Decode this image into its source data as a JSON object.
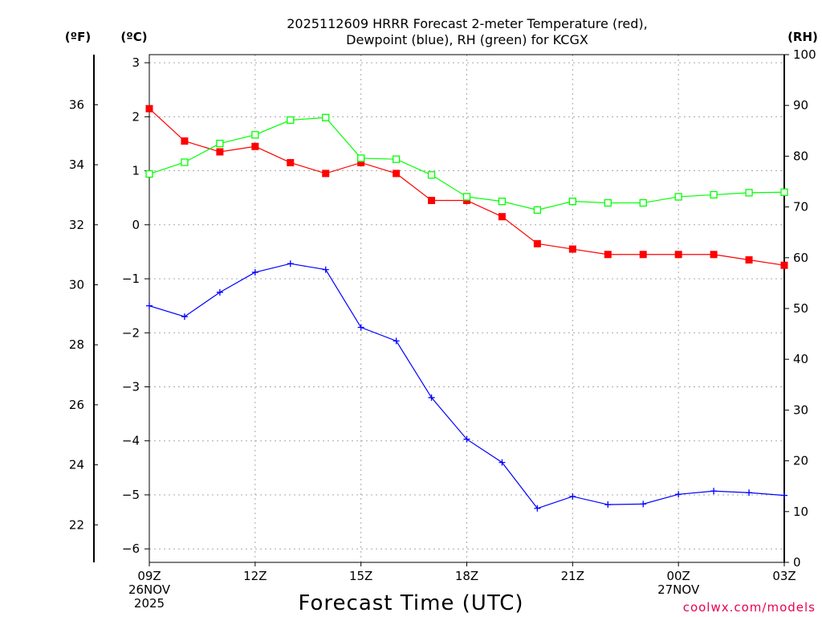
{
  "chart_data": {
    "type": "line",
    "title_line1": "2025112609 HRRR Forecast 2-meter Temperature (red),",
    "title_line2": "Dewpoint (blue), RH (green) for KCGX",
    "unit_f": "(ºF)",
    "unit_c": "(ºC)",
    "unit_rh": "(RH)",
    "xlabel": "Forecast Time (UTC)",
    "credit": "coolwx.com/models",
    "x_hours": [
      0,
      1,
      2,
      3,
      4,
      5,
      6,
      7,
      8,
      9,
      10,
      11,
      12,
      13,
      14,
      15,
      16,
      17,
      18
    ],
    "x_ticks": [
      {
        "hour": 0,
        "label": "09Z",
        "sub1": "26NOV",
        "sub2": "2025"
      },
      {
        "hour": 3,
        "label": "12Z",
        "sub1": "",
        "sub2": ""
      },
      {
        "hour": 6,
        "label": "15Z",
        "sub1": "",
        "sub2": ""
      },
      {
        "hour": 9,
        "label": "18Z",
        "sub1": "",
        "sub2": ""
      },
      {
        "hour": 12,
        "label": "21Z",
        "sub1": "",
        "sub2": ""
      },
      {
        "hour": 15,
        "label": "00Z",
        "sub1": "27NOV",
        "sub2": ""
      },
      {
        "hour": 18,
        "label": "03Z",
        "sub1": "",
        "sub2": ""
      }
    ],
    "xlim": [
      0,
      18
    ],
    "ylim_c": [
      -6.25,
      3.15
    ],
    "ylim_rh": [
      0,
      100
    ],
    "yticks_c": [
      "3",
      "2",
      "1",
      "0",
      "−1",
      "−2",
      "−3",
      "−4",
      "−5",
      "−6"
    ],
    "yticks_c_values": [
      3,
      2,
      1,
      0,
      -1,
      -2,
      -3,
      -4,
      -5,
      -6
    ],
    "yticks_f": [
      "36",
      "34",
      "32",
      "30",
      "28",
      "26",
      "24",
      "22"
    ],
    "yticks_f_values": [
      36,
      34,
      32,
      30,
      28,
      26,
      24,
      22
    ],
    "yticks_rh": [
      "100",
      "90",
      "80",
      "70",
      "60",
      "50",
      "40",
      "30",
      "20",
      "10",
      "0"
    ],
    "yticks_rh_values": [
      100,
      90,
      80,
      70,
      60,
      50,
      40,
      30,
      20,
      10,
      0
    ],
    "series": [
      {
        "name": "Temperature (°C)",
        "color": "#ff0000",
        "axis": "c",
        "marker": "filled-square",
        "values": [
          2.15,
          1.55,
          1.35,
          1.45,
          1.15,
          0.95,
          1.15,
          0.95,
          0.45,
          0.45,
          0.15,
          -0.35,
          -0.45,
          -0.55,
          -0.55,
          -0.55,
          -0.55,
          -0.65,
          -0.75
        ]
      },
      {
        "name": "Dewpoint (°C)",
        "color": "#0000ff",
        "axis": "c",
        "marker": "plus",
        "values": [
          -1.5,
          -1.7,
          -1.25,
          -0.88,
          -0.72,
          -0.83,
          -1.9,
          -2.15,
          -3.2,
          -3.97,
          -4.4,
          -5.25,
          -5.03,
          -5.18,
          -5.17,
          -4.99,
          -4.93,
          -4.96,
          -5.01
        ]
      },
      {
        "name": "RH (%)",
        "color": "#00ff00",
        "axis": "rh",
        "marker": "open-square",
        "values": [
          76.5,
          78.8,
          82.5,
          84.2,
          87.1,
          87.6,
          79.6,
          79.4,
          76.3,
          72.0,
          71.1,
          69.4,
          71.1,
          70.8,
          70.8,
          72.0,
          72.4,
          72.8,
          72.9
        ]
      }
    ]
  }
}
